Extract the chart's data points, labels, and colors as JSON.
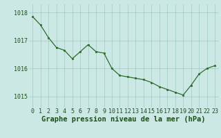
{
  "x": [
    0,
    1,
    2,
    3,
    4,
    5,
    6,
    7,
    8,
    9,
    10,
    11,
    12,
    13,
    14,
    15,
    16,
    17,
    18,
    19,
    20,
    21,
    22,
    23
  ],
  "y": [
    1017.85,
    1017.55,
    1017.1,
    1016.75,
    1016.65,
    1016.35,
    1016.6,
    1016.85,
    1016.6,
    1016.55,
    1016.0,
    1015.75,
    1015.7,
    1015.65,
    1015.6,
    1015.5,
    1015.35,
    1015.25,
    1015.15,
    1015.05,
    1015.4,
    1015.8,
    1016.0,
    1016.1
  ],
  "line_color": "#2d6a2d",
  "marker_color": "#2d6a2d",
  "bg_color": "#cce8e4",
  "grid_color": "#a0c8c4",
  "xlabel": "Graphe pression niveau de la mer (hPa)",
  "xlabel_color": "#1a4d1a",
  "tick_color": "#1a4d1a",
  "ylim": [
    1014.6,
    1018.3
  ],
  "yticks": [
    1015,
    1016,
    1017,
    1018
  ],
  "xticks": [
    0,
    1,
    2,
    3,
    4,
    5,
    6,
    7,
    8,
    9,
    10,
    11,
    12,
    13,
    14,
    15,
    16,
    17,
    18,
    19,
    20,
    21,
    22,
    23
  ],
  "tick_fontsize": 6,
  "xlabel_fontsize": 7.5
}
